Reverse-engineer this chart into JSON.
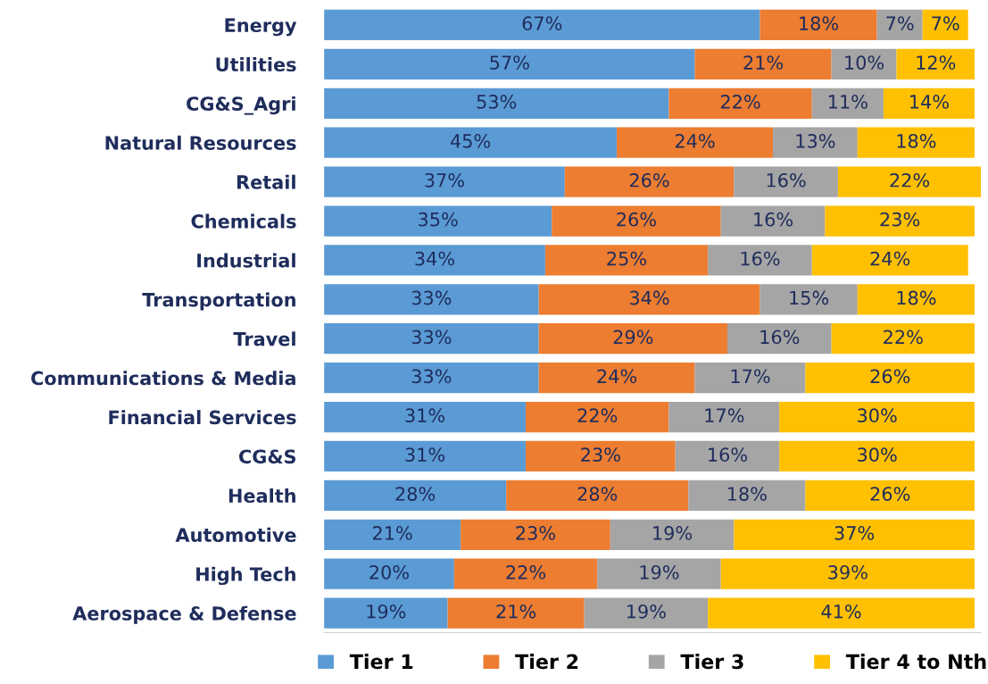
{
  "chart_data": {
    "type": "bar",
    "orientation": "horizontal",
    "stacked": true,
    "legend": "bottom",
    "categories": [
      "Energy",
      "Utilities",
      "CG&S_Agri",
      "Natural Resources",
      "Retail",
      "Chemicals",
      "Industrial",
      "Transportation",
      "Travel",
      "Communications & Media",
      "Financial Services",
      "CG&S",
      "Health",
      "Automotive",
      "High Tech",
      "Aerospace & Defense"
    ],
    "series": [
      {
        "name": "Tier 1",
        "color": "#5b9bd5",
        "values": [
          67,
          57,
          53,
          45,
          37,
          35,
          34,
          33,
          33,
          33,
          31,
          31,
          28,
          21,
          20,
          19
        ],
        "value_labels": [
          "67%",
          "57%",
          "53%",
          "45%",
          "37%",
          "35%",
          "34%",
          "33%",
          "33%",
          "33%",
          "31%",
          "31%",
          "28%",
          "21%",
          "20%",
          "19%"
        ]
      },
      {
        "name": "Tier 2",
        "color": "#ed7d31",
        "values": [
          18,
          21,
          22,
          24,
          26,
          26,
          25,
          34,
          29,
          24,
          22,
          23,
          28,
          23,
          22,
          21
        ],
        "value_labels": [
          "18%",
          "21%",
          "22%",
          "24%",
          "26%",
          "26%",
          "25%",
          "34%",
          "29%",
          "24%",
          "22%",
          "23%",
          "28%",
          "23%",
          "22%",
          "21%"
        ]
      },
      {
        "name": "Tier 3",
        "color": "#a5a5a5",
        "values": [
          7,
          10,
          11,
          13,
          16,
          16,
          16,
          15,
          16,
          17,
          17,
          16,
          18,
          19,
          19,
          19
        ],
        "value_labels": [
          "7%",
          "10%",
          "11%",
          "13%",
          "16%",
          "16%",
          "16%",
          "15%",
          "16%",
          "17%",
          "17%",
          "16%",
          "18%",
          "19%",
          "19%",
          "19%"
        ]
      },
      {
        "name": "Tier 4 to Nth",
        "color": "#ffc000",
        "values": [
          7,
          12,
          14,
          18,
          22,
          23,
          24,
          18,
          22,
          26,
          30,
          30,
          26,
          37,
          39,
          41
        ],
        "value_labels": [
          "7%",
          "12%",
          "14%",
          "18%",
          "22%",
          "23%",
          "24%",
          "18%",
          "22%",
          "26%",
          "30%",
          "30%",
          "26%",
          "37%",
          "39%",
          "41%"
        ]
      }
    ]
  }
}
